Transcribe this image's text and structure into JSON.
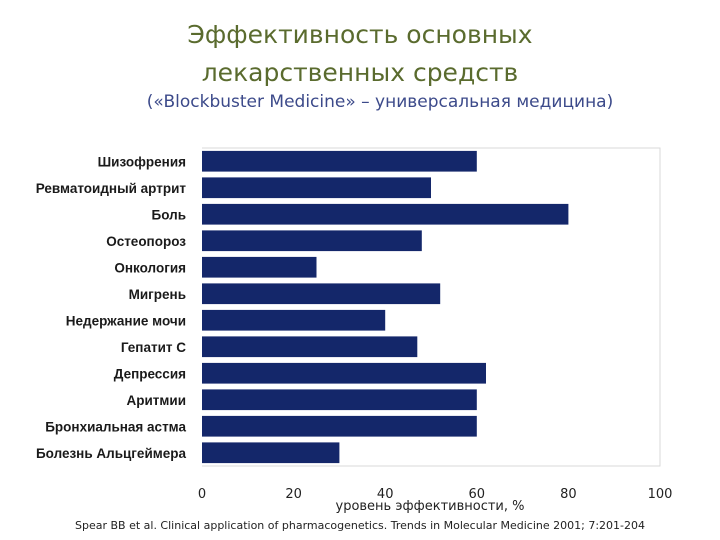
{
  "header": {
    "title_line1": "Эффективность основных",
    "title_line2": "лекарственных средств",
    "subtitle": "(«Blockbuster Medicine» – универсальная медицина)"
  },
  "source_note": "Spear BB et al. Clinical application of pharmacogenetics. Trends in Molecular Medicine 2001; 7:201-204",
  "chart_data": {
    "type": "bar",
    "orientation": "horizontal",
    "title": "",
    "xlabel": "уровень эффективности, %",
    "ylabel": "",
    "categories": [
      "Шизофрения",
      "Ревматоидный артрит",
      "Боль",
      "Остеопороз",
      "Онкология",
      "Мигрень",
      "Недержание мочи",
      "Гепатит С",
      "Депрессия",
      "Аритмии",
      "Бронхиальная астма",
      "Болезнь Альцгеймера"
    ],
    "values": [
      60,
      50,
      80,
      48,
      25,
      52,
      40,
      47,
      62,
      60,
      60,
      30
    ],
    "xlim": [
      0,
      100
    ],
    "xticks": [
      "0",
      "20",
      "40",
      "60",
      "80",
      "100"
    ],
    "grid": false,
    "legend": "none",
    "bar_color": "#14276a"
  }
}
